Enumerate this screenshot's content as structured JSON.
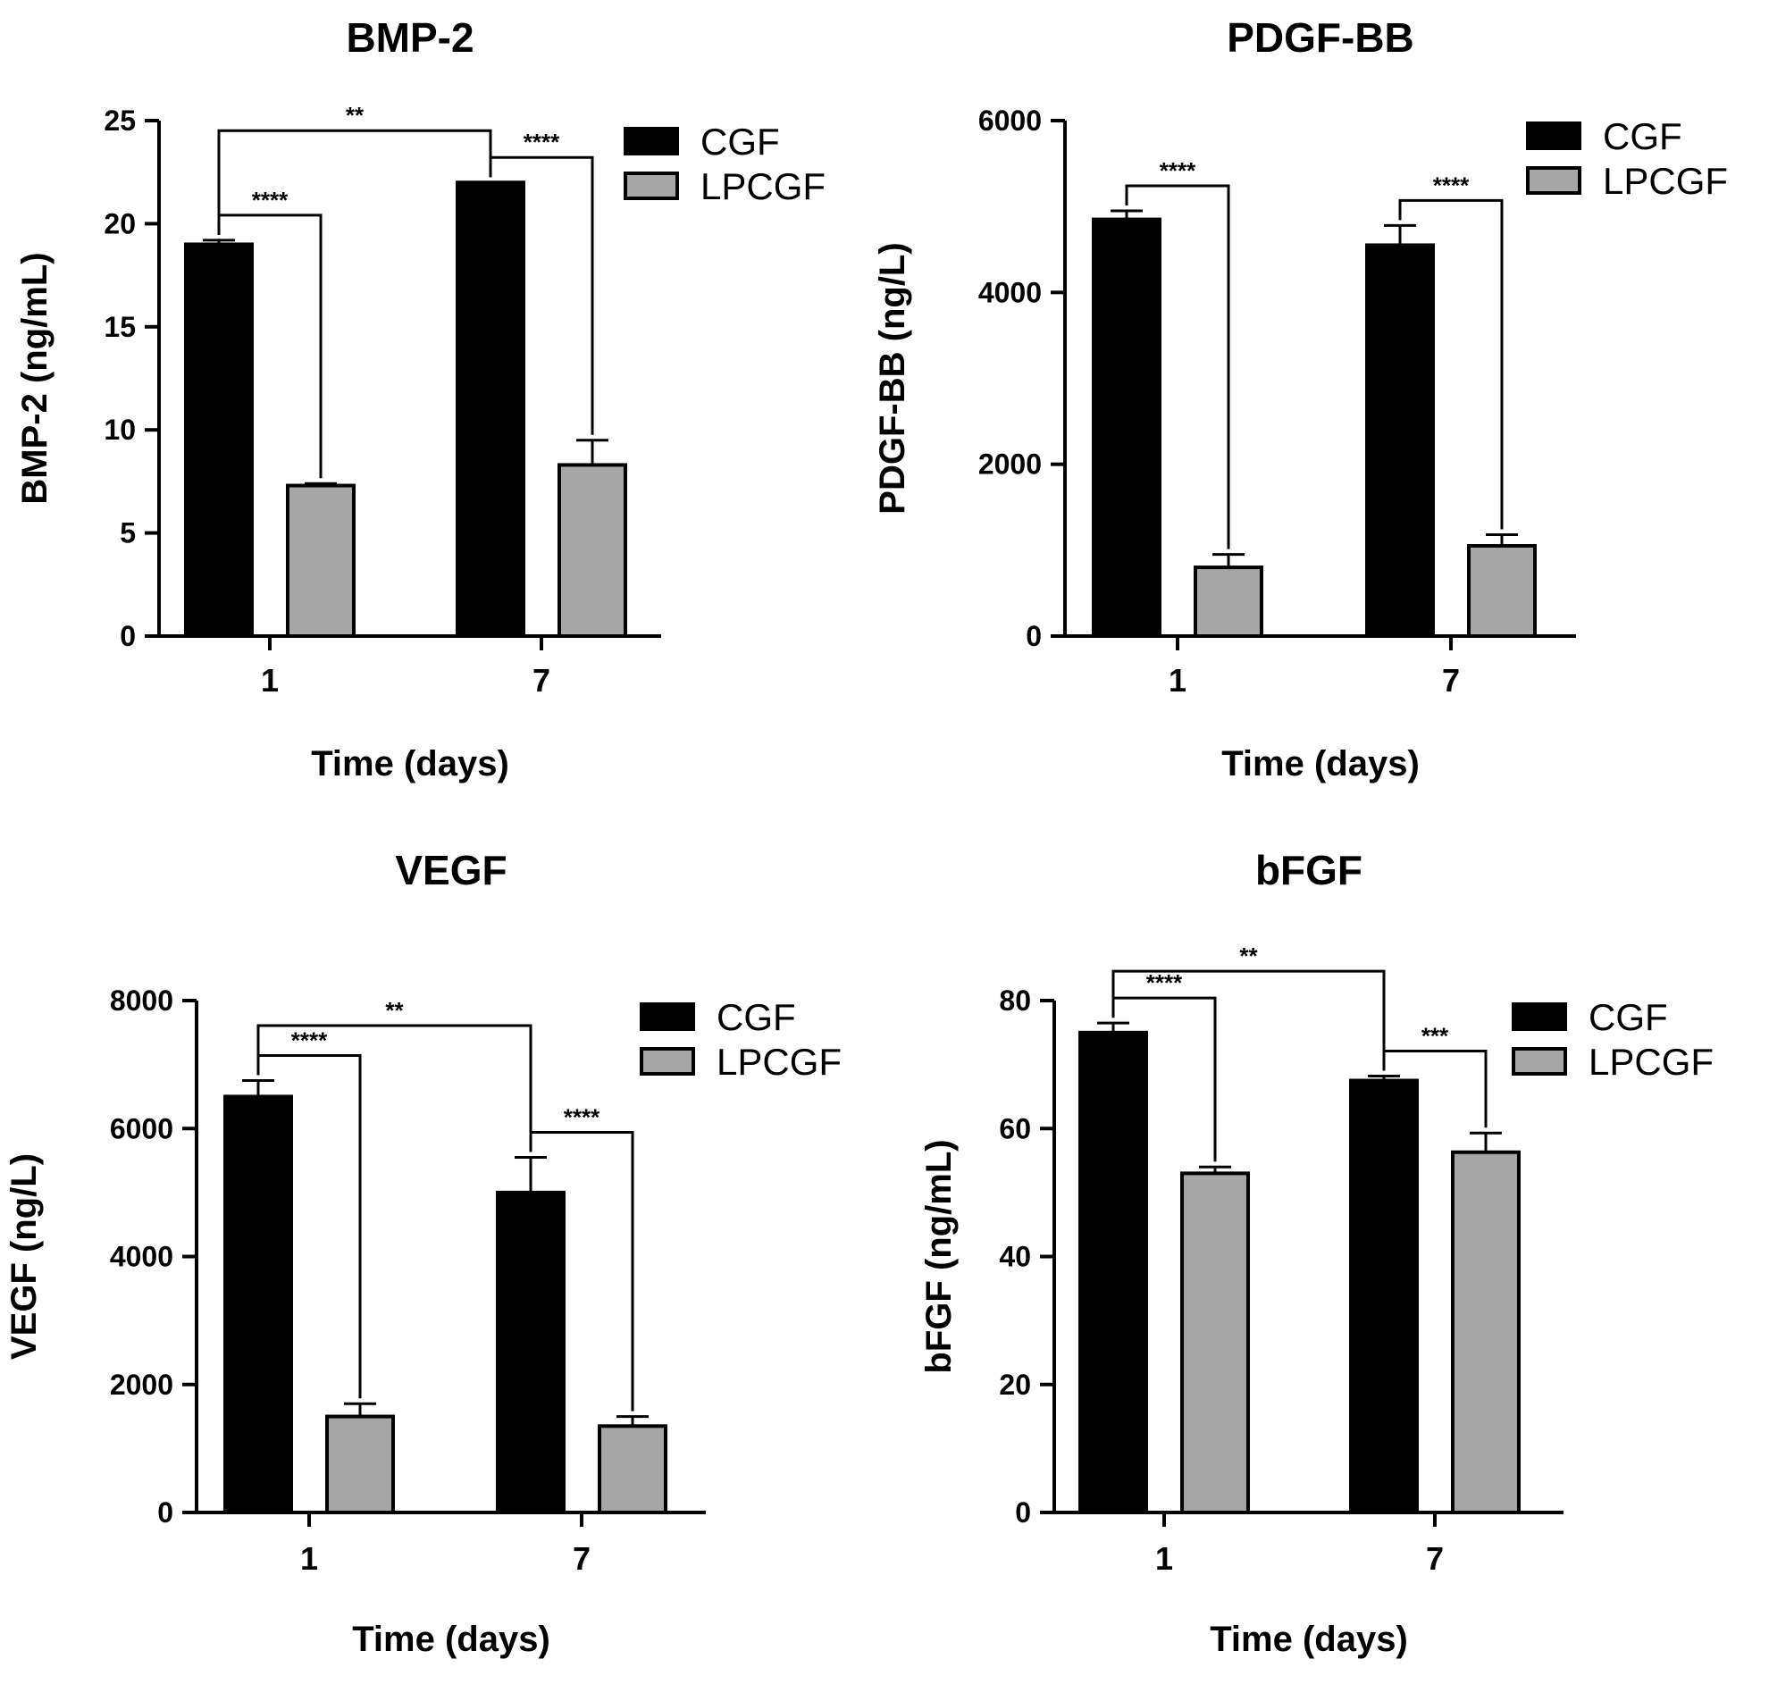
{
  "legend": [
    "CGF",
    "LPCGF"
  ],
  "colors": {
    "CGF": "#000000",
    "LPCGF": "#a6a6a6",
    "axis": "#000000"
  },
  "chart_data": [
    {
      "type": "bar",
      "title": "BMP-2",
      "xlabel": "Time (days)",
      "ylabel": "BMP-2 (ng/mL)",
      "categories": [
        "1",
        "7"
      ],
      "ylim": [
        0,
        25
      ],
      "yticks": [
        0,
        5,
        10,
        15,
        20,
        25
      ],
      "series": [
        {
          "name": "CGF",
          "values": [
            19,
            22
          ],
          "errors": [
            0.2,
            0
          ]
        },
        {
          "name": "LPCGF",
          "values": [
            7.3,
            8.3
          ],
          "errors": [
            0.1,
            1.2
          ]
        }
      ],
      "significance": [
        {
          "label": "****",
          "from": [
            0,
            0
          ],
          "to": [
            0,
            1
          ]
        },
        {
          "label": "****",
          "from": [
            1,
            0
          ],
          "to": [
            1,
            1
          ]
        },
        {
          "label": "**",
          "from": [
            0,
            0
          ],
          "to": [
            1,
            0
          ]
        }
      ]
    },
    {
      "type": "bar",
      "title": "PDGF-BB",
      "xlabel": "Time (days)",
      "ylabel": "PDGF-BB (ng/L)",
      "categories": [
        "1",
        "7"
      ],
      "ylim": [
        0,
        6000
      ],
      "yticks": [
        0,
        2000,
        4000,
        6000
      ],
      "series": [
        {
          "name": "CGF",
          "values": [
            4850,
            4550
          ],
          "errors": [
            100,
            230
          ]
        },
        {
          "name": "LPCGF",
          "values": [
            800,
            1050
          ],
          "errors": [
            150,
            130
          ]
        }
      ],
      "significance": [
        {
          "label": "****",
          "from": [
            0,
            0
          ],
          "to": [
            0,
            1
          ]
        },
        {
          "label": "****",
          "from": [
            1,
            0
          ],
          "to": [
            1,
            1
          ]
        }
      ]
    },
    {
      "type": "bar",
      "title": "VEGF",
      "xlabel": "Time (days)",
      "ylabel": "VEGF (ng/L)",
      "categories": [
        "1",
        "7"
      ],
      "ylim": [
        0,
        8000
      ],
      "yticks": [
        0,
        2000,
        4000,
        6000,
        8000
      ],
      "series": [
        {
          "name": "CGF",
          "values": [
            6500,
            5000
          ],
          "errors": [
            250,
            550
          ]
        },
        {
          "name": "LPCGF",
          "values": [
            1500,
            1350
          ],
          "errors": [
            200,
            150
          ]
        }
      ],
      "significance": [
        {
          "label": "****",
          "from": [
            0,
            0
          ],
          "to": [
            0,
            1
          ]
        },
        {
          "label": "****",
          "from": [
            1,
            0
          ],
          "to": [
            1,
            1
          ]
        },
        {
          "label": "**",
          "from": [
            0,
            0
          ],
          "to": [
            1,
            0
          ]
        }
      ]
    },
    {
      "type": "bar",
      "title": "bFGF",
      "xlabel": "Time (days)",
      "ylabel": "bFGF (ng/mL)",
      "categories": [
        "1",
        "7"
      ],
      "ylim": [
        0,
        80
      ],
      "yticks": [
        0,
        20,
        40,
        60,
        80
      ],
      "series": [
        {
          "name": "CGF",
          "values": [
            75,
            67.5
          ],
          "errors": [
            1.5,
            0.7
          ]
        },
        {
          "name": "LPCGF",
          "values": [
            53,
            56.3
          ],
          "errors": [
            1,
            3
          ]
        }
      ],
      "significance": [
        {
          "label": "****",
          "from": [
            0,
            0
          ],
          "to": [
            0,
            1
          ]
        },
        {
          "label": "***",
          "from": [
            1,
            0
          ],
          "to": [
            1,
            1
          ]
        },
        {
          "label": "**",
          "from": [
            0,
            0
          ],
          "to": [
            1,
            0
          ]
        }
      ]
    }
  ]
}
